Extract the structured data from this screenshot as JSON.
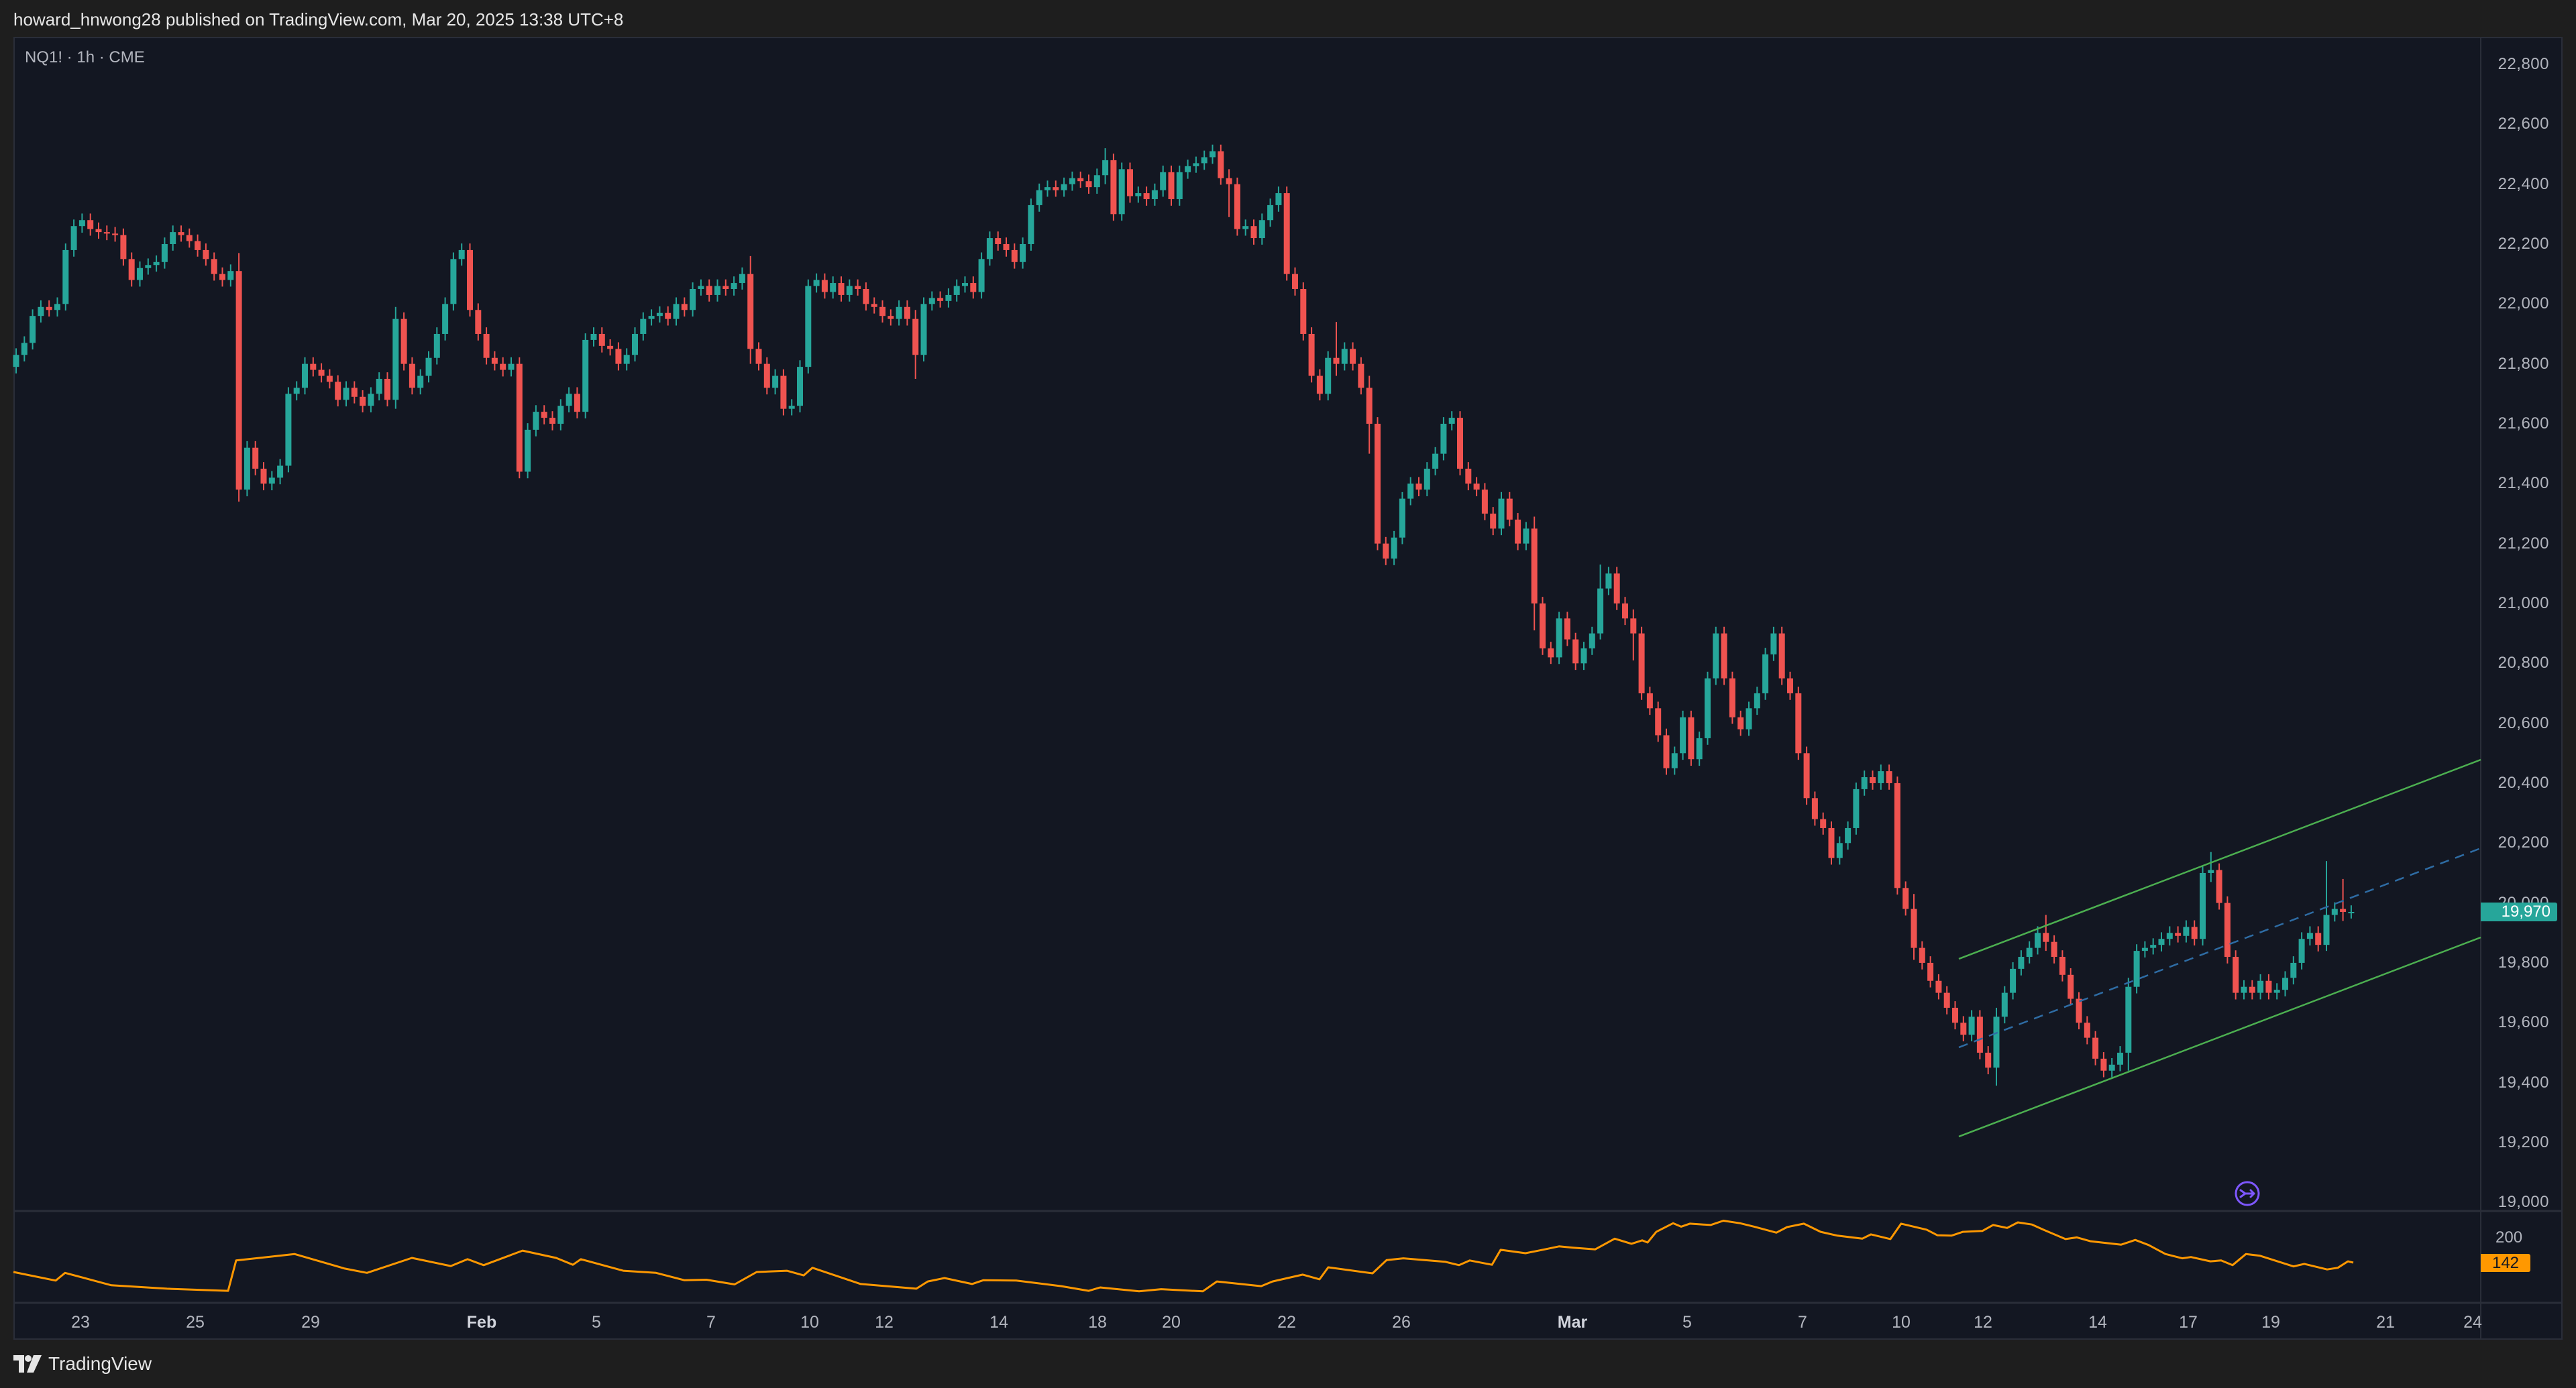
{
  "header": {
    "publish_text": "howard_hnwong28 published on TradingView.com, Mar 20, 2025 13:38 UTC+8"
  },
  "chart": {
    "symbol_label": "NQ1! · 1h · CME",
    "up_color": "#26a69a",
    "down_color": "#ef5350",
    "background": "#131722",
    "last_price_label": "19,970",
    "last_price_color": "#26a69a",
    "price_axis_ticks": [
      "22,800",
      "22,600",
      "22,400",
      "22,200",
      "22,000",
      "21,800",
      "21,600",
      "21,400",
      "21,200",
      "21,000",
      "20,800",
      "20,600",
      "20,400",
      "20,200",
      "20,000",
      "19,800",
      "19,600",
      "19,400",
      "19,200",
      "19,000"
    ],
    "time_axis_labels": [
      {
        "label": "23",
        "x": 120
      },
      {
        "label": "25",
        "x": 291
      },
      {
        "label": "29",
        "x": 463
      },
      {
        "label": "Feb",
        "x": 718,
        "major": true
      },
      {
        "label": "5",
        "x": 889
      },
      {
        "label": "7",
        "x": 1060
      },
      {
        "label": "10",
        "x": 1207
      },
      {
        "label": "12",
        "x": 1318
      },
      {
        "label": "14",
        "x": 1489
      },
      {
        "label": "18",
        "x": 1636
      },
      {
        "label": "20",
        "x": 1746
      },
      {
        "label": "22",
        "x": 1918
      },
      {
        "label": "26",
        "x": 2089
      },
      {
        "label": "Mar",
        "x": 2344,
        "major": true
      },
      {
        "label": "5",
        "x": 2515
      },
      {
        "label": "7",
        "x": 2687
      },
      {
        "label": "10",
        "x": 2834
      },
      {
        "label": "12",
        "x": 2956
      },
      {
        "label": "14",
        "x": 3127
      },
      {
        "label": "17",
        "x": 3262
      },
      {
        "label": "19",
        "x": 3385
      },
      {
        "label": "21",
        "x": 3556
      },
      {
        "label": "24",
        "x": 3686
      }
    ],
    "event_icon": "split-arrow-icon"
  },
  "indicator": {
    "tick_label": "200",
    "last_value_label": "142",
    "color": "#ff9800"
  },
  "drawings": {
    "channel": {
      "color": "#4caf50",
      "midline_color": "#2e6ca4",
      "upper": [
        [
          2920,
          1430
        ],
        [
          3698,
          1133
        ]
      ],
      "lower": [
        [
          2920,
          1695
        ],
        [
          3698,
          1398
        ]
      ],
      "middle": [
        [
          2920,
          1562
        ],
        [
          3698,
          1265
        ]
      ]
    }
  },
  "footer": {
    "brand": "TradingView"
  },
  "chart_data": {
    "type": "candlestick",
    "title": "NQ1! · 1h · CME",
    "xlabel": "",
    "ylabel": "",
    "ylim": [
      19000,
      22800
    ],
    "x_tick_labels": [
      "23",
      "25",
      "29",
      "Feb",
      "5",
      "7",
      "10",
      "12",
      "14",
      "18",
      "20",
      "22",
      "26",
      "Mar",
      "5",
      "7",
      "10",
      "12",
      "14",
      "17",
      "19",
      "21",
      "24"
    ],
    "y_tick_labels": [
      "22,800",
      "22,600",
      "22,400",
      "22,200",
      "22,000",
      "21,800",
      "21,600",
      "21,400",
      "21,200",
      "21,000",
      "20,800",
      "20,600",
      "20,400",
      "20,200",
      "20,000",
      "19,800",
      "19,600",
      "19,400",
      "19,200",
      "19,000"
    ],
    "last_price": 19970,
    "first_open": 21790,
    "default_wick": 22,
    "close": [
      21830,
      21870,
      21960,
      21990,
      21980,
      22000,
      22180,
      22260,
      22280,
      22250,
      22240,
      22235,
      22230,
      22150,
      22080,
      22120,
      22130,
      22140,
      22200,
      22240,
      22230,
      22210,
      22180,
      22150,
      22100,
      22080,
      22110,
      21380,
      21520,
      21450,
      21400,
      21420,
      21460,
      21700,
      21720,
      21800,
      21780,
      21760,
      21740,
      21680,
      21720,
      21690,
      21660,
      21700,
      21750,
      21680,
      21950,
      21800,
      21720,
      21760,
      21820,
      21900,
      22000,
      22150,
      22180,
      21980,
      21900,
      21820,
      21800,
      21780,
      21800,
      21440,
      21580,
      21640,
      21620,
      21600,
      21660,
      21700,
      21640,
      21880,
      21900,
      21860,
      21850,
      21800,
      21830,
      21900,
      21950,
      21960,
      21970,
      21950,
      22000,
      21980,
      22050,
      22060,
      22030,
      22060,
      22050,
      22070,
      22100,
      21850,
      21800,
      21720,
      21760,
      21650,
      21660,
      21790,
      22060,
      22080,
      22040,
      22070,
      22030,
      22060,
      22050,
      22000,
      21990,
      21960,
      21950,
      21990,
      21950,
      21830,
      22000,
      22020,
      22010,
      22030,
      22060,
      22070,
      22040,
      22150,
      22220,
      22200,
      22180,
      22140,
      22200,
      22330,
      22380,
      22390,
      22380,
      22400,
      22420,
      22410,
      22390,
      22430,
      22480,
      22300,
      22450,
      22360,
      22370,
      22350,
      22380,
      22440,
      22350,
      22440,
      22460,
      22470,
      22490,
      22510,
      22420,
      22400,
      22250,
      22260,
      22220,
      22280,
      22330,
      22370,
      22100,
      22050,
      21900,
      21760,
      21700,
      21820,
      21800,
      21850,
      21800,
      21720,
      21600,
      21200,
      21150,
      21220,
      21350,
      21400,
      21380,
      21450,
      21500,
      21600,
      21620,
      21450,
      21400,
      21380,
      21300,
      21250,
      21350,
      21280,
      21200,
      21250,
      21000,
      20850,
      20820,
      20950,
      20880,
      20800,
      20850,
      20900,
      21050,
      21100,
      21000,
      20950,
      20900,
      20700,
      20650,
      20560,
      20450,
      20500,
      20620,
      20480,
      20550,
      20750,
      20900,
      20750,
      20620,
      20580,
      20650,
      20700,
      20830,
      20900,
      20750,
      20700,
      20500,
      20350,
      20280,
      20250,
      20150,
      20200,
      20250,
      20380,
      20420,
      20400,
      20440,
      20400,
      20050,
      19980,
      19850,
      19800,
      19740,
      19700,
      19650,
      19600,
      19560,
      19620,
      19500,
      19450,
      19620,
      19700,
      19780,
      19820,
      19850,
      19900,
      19870,
      19820,
      19760,
      19680,
      19600,
      19550,
      19480,
      19440,
      19460,
      19500,
      19720,
      19840,
      19850,
      19860,
      19880,
      19900,
      19890,
      19920,
      19880,
      20100,
      20110,
      20000,
      19820,
      19700,
      19720,
      19700,
      19740,
      19700,
      19710,
      19750,
      19800,
      19880,
      19900,
      19860,
      19960,
      19980,
      19970,
      19970
    ],
    "wick_overrides": {
      "27": [
        60,
        40
      ],
      "46": [
        40,
        30
      ],
      "89": [
        60,
        50
      ],
      "109": [
        30,
        80
      ],
      "132": [
        40,
        30
      ],
      "147": [
        30,
        110
      ],
      "160": [
        120,
        40
      ],
      "164": [
        40,
        100
      ],
      "184": [
        40,
        90
      ],
      "192": [
        80,
        20
      ],
      "196": [
        30,
        90
      ],
      "230": [
        50,
        40
      ],
      "240": [
        30,
        60
      ],
      "246": [
        60,
        30
      ],
      "256": [
        30,
        60
      ],
      "266": [
        60,
        30
      ],
      "280": [
        180,
        20
      ],
      "282": [
        100,
        30
      ]
    },
    "indicator_series": {
      "name": "orange oscillator",
      "color": "#ff9800",
      "points": [
        [
          20,
          120
        ],
        [
          83,
          100
        ],
        [
          97,
          118
        ],
        [
          166,
          89
        ],
        [
          249,
          81
        ],
        [
          340,
          76
        ],
        [
          352,
          147
        ],
        [
          439,
          162
        ],
        [
          514,
          128
        ],
        [
          547,
          118
        ],
        [
          614,
          153
        ],
        [
          672,
          134
        ],
        [
          697,
          150
        ],
        [
          721,
          136
        ],
        [
          779,
          170
        ],
        [
          829,
          153
        ],
        [
          854,
          137
        ],
        [
          866,
          150
        ],
        [
          929,
          123
        ],
        [
          978,
          118
        ],
        [
          1020,
          101
        ],
        [
          1053,
          102
        ],
        [
          1095,
          91
        ],
        [
          1128,
          120
        ],
        [
          1173,
          123
        ],
        [
          1198,
          112
        ],
        [
          1211,
          130
        ],
        [
          1283,
          92
        ],
        [
          1366,
          81
        ],
        [
          1383,
          98
        ],
        [
          1408,
          106
        ],
        [
          1449,
          92
        ],
        [
          1466,
          101
        ],
        [
          1515,
          100
        ],
        [
          1582,
          87
        ],
        [
          1623,
          76
        ],
        [
          1640,
          84
        ],
        [
          1698,
          75
        ],
        [
          1731,
          80
        ],
        [
          1793,
          75
        ],
        [
          1814,
          98
        ],
        [
          1880,
          87
        ],
        [
          1897,
          98
        ],
        [
          1942,
          114
        ],
        [
          1967,
          103
        ],
        [
          1980,
          131
        ],
        [
          2046,
          117
        ],
        [
          2067,
          148
        ],
        [
          2092,
          152
        ],
        [
          2154,
          144
        ],
        [
          2175,
          136
        ],
        [
          2191,
          147
        ],
        [
          2224,
          137
        ],
        [
          2237,
          172
        ],
        [
          2274,
          164
        ],
        [
          2303,
          173
        ],
        [
          2324,
          180
        ],
        [
          2345,
          177
        ],
        [
          2378,
          173
        ],
        [
          2407,
          198
        ],
        [
          2432,
          186
        ],
        [
          2448,
          194
        ],
        [
          2456,
          189
        ],
        [
          2469,
          214
        ],
        [
          2494,
          234
        ],
        [
          2506,
          226
        ],
        [
          2519,
          233
        ],
        [
          2550,
          230
        ],
        [
          2569,
          240
        ],
        [
          2594,
          234
        ],
        [
          2615,
          226
        ],
        [
          2648,
          212
        ],
        [
          2664,
          225
        ],
        [
          2689,
          233
        ],
        [
          2714,
          214
        ],
        [
          2739,
          205
        ],
        [
          2776,
          198
        ],
        [
          2789,
          208
        ],
        [
          2818,
          197
        ],
        [
          2834,
          233
        ],
        [
          2872,
          219
        ],
        [
          2888,
          206
        ],
        [
          2909,
          205
        ],
        [
          2926,
          214
        ],
        [
          2955,
          216
        ],
        [
          2971,
          230
        ],
        [
          2992,
          223
        ],
        [
          3008,
          236
        ],
        [
          3029,
          231
        ],
        [
          3046,
          219
        ],
        [
          3079,
          197
        ],
        [
          3096,
          201
        ],
        [
          3116,
          192
        ],
        [
          3162,
          184
        ],
        [
          3183,
          195
        ],
        [
          3203,
          183
        ],
        [
          3228,
          162
        ],
        [
          3253,
          152
        ],
        [
          3266,
          155
        ],
        [
          3295,
          145
        ],
        [
          3311,
          147
        ],
        [
          3328,
          136
        ],
        [
          3348,
          162
        ],
        [
          3369,
          158
        ],
        [
          3419,
          133
        ],
        [
          3435,
          139
        ],
        [
          3469,
          126
        ],
        [
          3485,
          130
        ],
        [
          3500,
          145
        ],
        [
          3508,
          142
        ]
      ]
    }
  }
}
